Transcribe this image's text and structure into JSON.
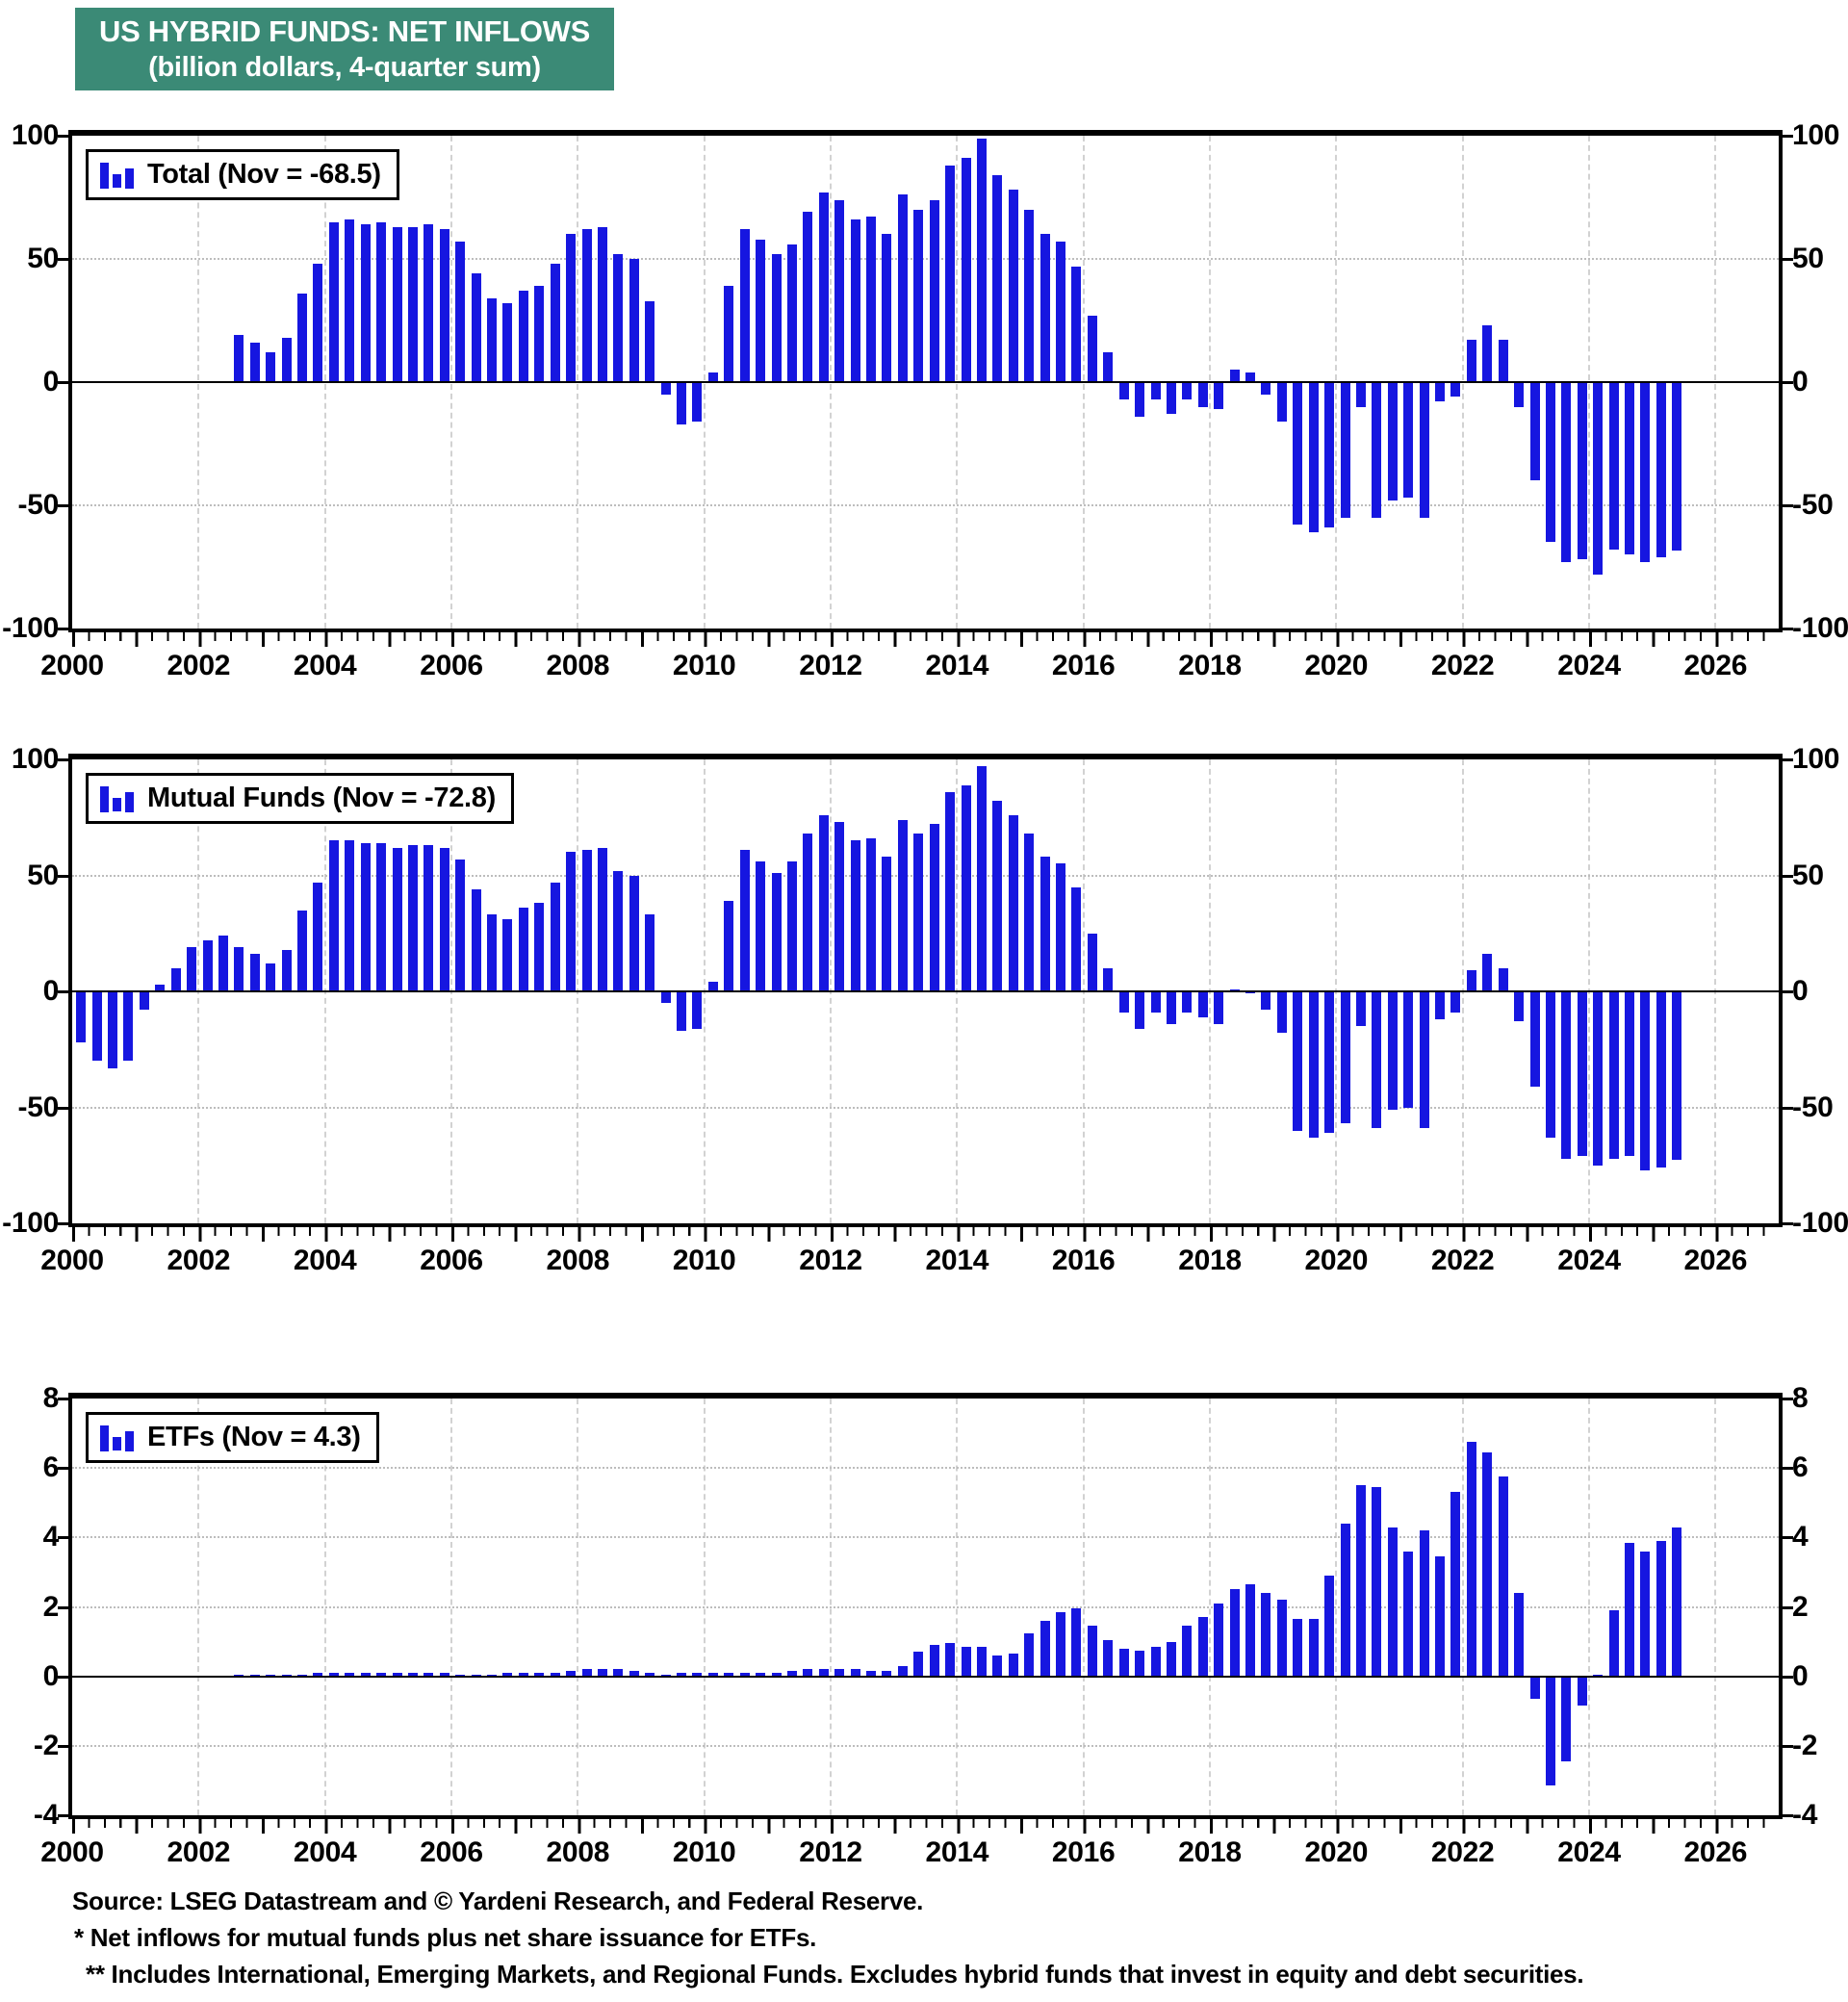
{
  "title": {
    "line1": "US HYBRID FUNDS: NET INFLOWS",
    "line2": "(billion dollars, 4-quarter sum)"
  },
  "colors": {
    "bar_blue": "#1616e0",
    "title_bg": "#3b8a76",
    "title_text": "#ffffff"
  },
  "x_axis": {
    "start_year": 2000,
    "end_year": 2027,
    "tick_label_years": [
      2000,
      2002,
      2004,
      2006,
      2008,
      2010,
      2012,
      2014,
      2016,
      2018,
      2020,
      2022,
      2024,
      2026
    ]
  },
  "chart_data": [
    {
      "type": "bar",
      "name": "total",
      "legend": "Total (Nov = -68.5)",
      "ylim": [
        -100,
        100
      ],
      "yticks": [
        100,
        50,
        0,
        -50,
        -100
      ],
      "grid": "on",
      "legend_position": "top-left",
      "start_year": 2002,
      "start_quarter": 3,
      "quarterly_values": [
        19,
        16,
        12,
        18,
        36,
        48,
        65,
        66,
        64,
        65,
        63,
        63,
        64,
        62,
        57,
        44,
        34,
        32,
        37,
        39,
        48,
        60,
        62,
        63,
        52,
        50,
        33,
        -5,
        -17,
        -16,
        4,
        39,
        62,
        58,
        52,
        56,
        69,
        77,
        74,
        66,
        67,
        60,
        76,
        70,
        74,
        88,
        91,
        99,
        84,
        78,
        70,
        60,
        57,
        47,
        27,
        12,
        -7,
        -14,
        -7,
        -13,
        -7,
        -10,
        -11,
        5,
        4,
        -5,
        -16,
        -58,
        -61,
        -59,
        -55,
        -10,
        -55,
        -48,
        -47,
        -55,
        -8,
        -6,
        17,
        23,
        17,
        -10,
        -40,
        -65,
        -73,
        -72,
        -78,
        -68,
        -70,
        -73,
        -71,
        -68.5
      ]
    },
    {
      "type": "bar",
      "name": "mutual-funds",
      "legend": "Mutual Funds (Nov = -72.8)",
      "ylim": [
        -100,
        100
      ],
      "yticks": [
        100,
        50,
        0,
        -50,
        -100
      ],
      "grid": "on",
      "legend_position": "top-left",
      "start_year": 2000,
      "start_quarter": 1,
      "quarterly_values": [
        -22,
        -30,
        -33,
        -30,
        -8,
        3,
        10,
        19,
        22,
        24,
        19,
        16,
        12,
        18,
        35,
        47,
        65,
        65,
        64,
        64,
        62,
        63,
        63,
        62,
        57,
        44,
        33,
        31,
        36,
        38,
        47,
        60,
        61,
        62,
        52,
        50,
        33,
        -5,
        -17,
        -16,
        4,
        39,
        61,
        56,
        51,
        56,
        68,
        76,
        73,
        65,
        66,
        58,
        74,
        68,
        72,
        86,
        89,
        97,
        82,
        76,
        68,
        58,
        55,
        45,
        25,
        10,
        -9,
        -16,
        -9,
        -14,
        -9,
        -11,
        -14,
        1,
        0,
        -8,
        -18,
        -60,
        -63,
        -61,
        -57,
        -15,
        -59,
        -51,
        -50,
        -59,
        -12,
        -9,
        9,
        16,
        10,
        -13,
        -41,
        -63,
        -72,
        -71,
        -75,
        -72,
        -71,
        -77,
        -76,
        -72.8
      ]
    },
    {
      "type": "bar",
      "name": "etfs",
      "legend": "ETFs (Nov = 4.3)",
      "ylim": [
        -4,
        8
      ],
      "yticks": [
        8,
        6,
        4,
        2,
        0,
        -2,
        -4
      ],
      "grid": "on",
      "legend_position": "top-left",
      "start_year": 2002,
      "start_quarter": 3,
      "quarterly_values": [
        0.05,
        0.05,
        0.05,
        0.05,
        0.05,
        0.1,
        0.1,
        0.1,
        0.1,
        0.1,
        0.1,
        0.1,
        0.1,
        0.1,
        0.05,
        0.05,
        0.05,
        0.1,
        0.1,
        0.1,
        0.1,
        0.15,
        0.2,
        0.2,
        0.2,
        0.15,
        0.1,
        0.05,
        0.1,
        0.1,
        0.1,
        0.1,
        0.1,
        0.1,
        0.1,
        0.15,
        0.2,
        0.2,
        0.2,
        0.2,
        0.15,
        0.15,
        0.3,
        0.7,
        0.9,
        0.95,
        0.85,
        0.85,
        0.6,
        0.65,
        1.25,
        1.6,
        1.85,
        1.95,
        1.45,
        1.05,
        0.8,
        0.75,
        0.85,
        1.0,
        1.45,
        1.7,
        2.1,
        2.5,
        2.65,
        2.4,
        2.2,
        1.65,
        1.65,
        2.9,
        4.4,
        5.5,
        5.45,
        4.3,
        3.6,
        4.2,
        3.45,
        5.3,
        6.75,
        6.45,
        5.75,
        2.4,
        -0.65,
        -3.15,
        -2.45,
        -0.85,
        0.05,
        1.9,
        3.85,
        3.6,
        3.9,
        4.3
      ]
    }
  ],
  "footer": {
    "lines": [
      "Source: LSEG Datastream and © Yardeni Research, and Federal Reserve.",
      "* Net inflows for mutual funds plus net share issuance for ETFs.",
      "** Includes International, Emerging Markets, and Regional Funds. Excludes hybrid funds that invest in equity and debt securities."
    ]
  }
}
